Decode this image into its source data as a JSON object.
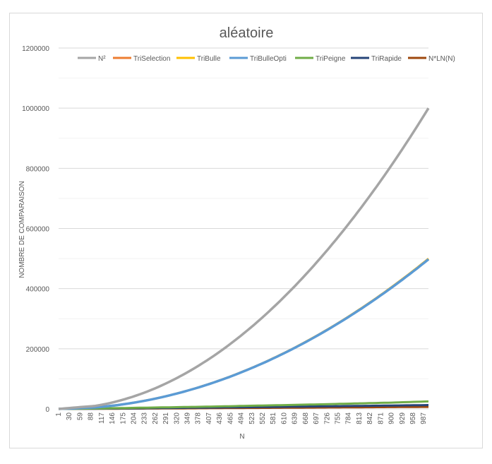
{
  "chart_data": {
    "type": "line",
    "title": "aléatoire",
    "xlabel": "N",
    "ylabel": "NOMBRE DE COMPARAISON",
    "ylim": [
      0,
      1200000
    ],
    "yticks": [
      0,
      200000,
      400000,
      600000,
      800000,
      1000000,
      1200000
    ],
    "ytick_labels": [
      "0",
      "200000",
      "400000",
      "600000",
      "800000",
      "1000000",
      "1200000"
    ],
    "xlim": [
      1,
      1000
    ],
    "xtick_labels": [
      "1",
      "30",
      "59",
      "88",
      "117",
      "146",
      "175",
      "204",
      "233",
      "262",
      "291",
      "320",
      "349",
      "378",
      "407",
      "436",
      "465",
      "494",
      "523",
      "552",
      "581",
      "610",
      "639",
      "668",
      "697",
      "726",
      "755",
      "784",
      "813",
      "842",
      "871",
      "900",
      "929",
      "958",
      "987"
    ],
    "grid": true,
    "legend_position": "top",
    "series": [
      {
        "name": "N²",
        "color": "#a5a5a5",
        "x": [
          1,
          100,
          200,
          300,
          400,
          500,
          600,
          700,
          800,
          900,
          1000
        ],
        "values": [
          1,
          10000,
          40000,
          90000,
          160000,
          250000,
          360000,
          490000,
          640000,
          810000,
          1000000
        ]
      },
      {
        "name": "TriSelection",
        "color": "#ed7d31",
        "x": [
          1,
          100,
          200,
          300,
          400,
          500,
          600,
          700,
          800,
          900,
          1000
        ],
        "values": [
          0,
          4950,
          19900,
          44850,
          79800,
          124750,
          179700,
          244650,
          319600,
          404550,
          499500
        ]
      },
      {
        "name": "TriBulle",
        "color": "#ffc000",
        "x": [
          1,
          100,
          200,
          300,
          400,
          500,
          600,
          700,
          800,
          900,
          1000
        ],
        "values": [
          0,
          4950,
          19900,
          44850,
          79800,
          124750,
          179700,
          244650,
          319600,
          404550,
          499500
        ]
      },
      {
        "name": "TriBulleOpti",
        "color": "#5b9bd5",
        "x": [
          1,
          100,
          200,
          300,
          400,
          500,
          600,
          700,
          800,
          900,
          1000
        ],
        "values": [
          0,
          4900,
          19800,
          44600,
          79500,
          124200,
          178900,
          243500,
          318100,
          402700,
          497500
        ]
      },
      {
        "name": "TriPeigne",
        "color": "#70ad47",
        "x": [
          1,
          100,
          200,
          300,
          400,
          500,
          600,
          700,
          800,
          900,
          1000
        ],
        "values": [
          0,
          1500,
          3500,
          5500,
          7500,
          10000,
          12500,
          15000,
          18000,
          21000,
          25000
        ]
      },
      {
        "name": "TriRapide",
        "color": "#264478",
        "x": [
          1,
          100,
          200,
          300,
          400,
          500,
          600,
          700,
          800,
          900,
          1000
        ],
        "values": [
          0,
          800,
          1900,
          3100,
          4400,
          5700,
          7000,
          8400,
          9800,
          11300,
          12800
        ]
      },
      {
        "name": "N*LN(N)",
        "color": "#9e480e",
        "x": [
          1,
          100,
          200,
          300,
          400,
          500,
          600,
          700,
          800,
          900,
          1000
        ],
        "values": [
          0,
          461,
          1060,
          1711,
          2397,
          3107,
          3838,
          4586,
          5348,
          6122,
          6908
        ]
      }
    ]
  }
}
